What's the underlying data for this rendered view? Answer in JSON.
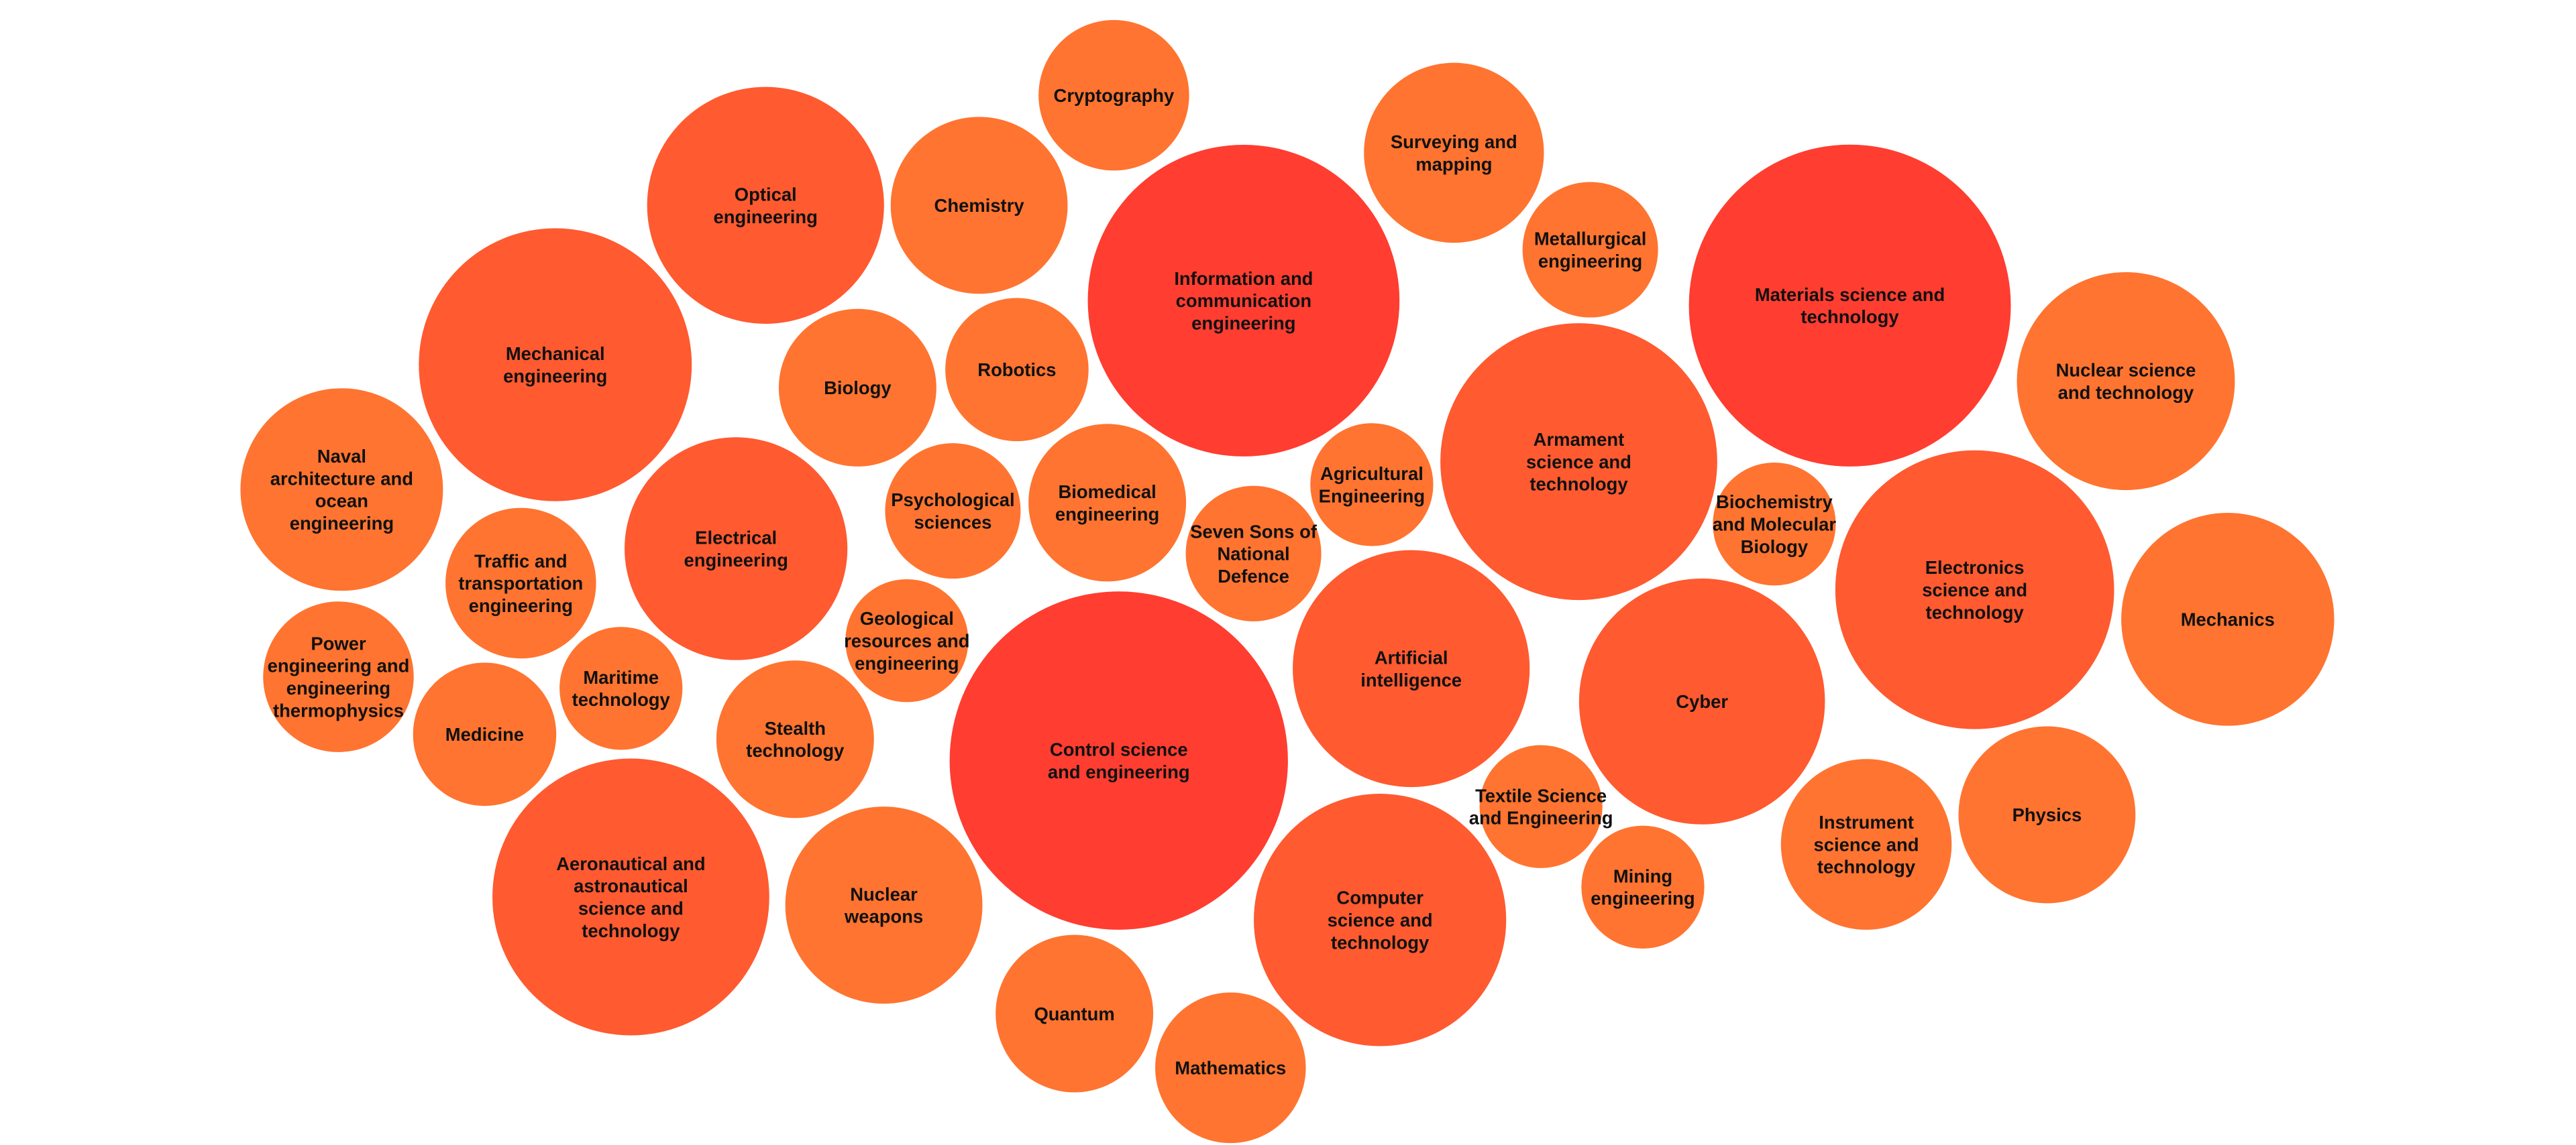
{
  "chart_data": {
    "type": "bubble",
    "title": "",
    "legend": "none",
    "grid": false,
    "colors": {
      "small": "#FF7430",
      "medium": "#FF5A30",
      "large": "#FF3D30",
      "background": "#FFFFFF",
      "text": "#111111"
    },
    "items": [
      {
        "label": "Cryptography",
        "value": 21
      },
      {
        "label": "Optical engineering",
        "value": 52
      },
      {
        "label": "Chemistry",
        "value": 29
      },
      {
        "label": "Information and communication engineering",
        "value": 90
      },
      {
        "label": "Surveying and mapping",
        "value": 30
      },
      {
        "label": "Metallurgical engineering",
        "value": 17
      },
      {
        "label": "Materials science and technology",
        "value": 96
      },
      {
        "label": "Mechanical engineering",
        "value": 69
      },
      {
        "label": "Biology",
        "value": 23
      },
      {
        "label": "Robotics",
        "value": 19
      },
      {
        "label": "Nuclear science and technology",
        "value": 44
      },
      {
        "label": "Naval architecture and ocean engineering",
        "value": 38
      },
      {
        "label": "Armament science and technology",
        "value": 71
      },
      {
        "label": "Electrical engineering",
        "value": 46
      },
      {
        "label": "Psychological sciences",
        "value": 17
      },
      {
        "label": "Biomedical engineering",
        "value": 23
      },
      {
        "label": "Agricultural Engineering",
        "value": 14
      },
      {
        "label": "Seven Sons of National Defence",
        "value": 17
      },
      {
        "label": "Biochemistry and Molecular Biology",
        "value": 14
      },
      {
        "label": "Traffic and transportation engineering",
        "value": 21
      },
      {
        "label": "Electronics science and technology",
        "value": 72
      },
      {
        "label": "Mechanics",
        "value": 42
      },
      {
        "label": "Power engineering and engineering thermophysics",
        "value": 21
      },
      {
        "label": "Geological resources and engineering",
        "value": 14
      },
      {
        "label": "Maritime technology",
        "value": 14
      },
      {
        "label": "Artificial intelligence",
        "value": 52
      },
      {
        "label": "Medicine",
        "value": 19
      },
      {
        "label": "Stealth technology",
        "value": 23
      },
      {
        "label": "Control science and engineering",
        "value": 106
      },
      {
        "label": "Cyber",
        "value": 56
      },
      {
        "label": "Textile Science and Engineering",
        "value": 14
      },
      {
        "label": "Physics",
        "value": 29
      },
      {
        "label": "Instrument science and technology",
        "value": 27
      },
      {
        "label": "Mining engineering",
        "value": 14
      },
      {
        "label": "Aeronautical and astronautical science and technology",
        "value": 71
      },
      {
        "label": "Nuclear weapons",
        "value": 36
      },
      {
        "label": "Computer science and technology",
        "value": 59
      },
      {
        "label": "Quantum",
        "value": 23
      },
      {
        "label": "Mathematics",
        "value": 21
      }
    ]
  }
}
